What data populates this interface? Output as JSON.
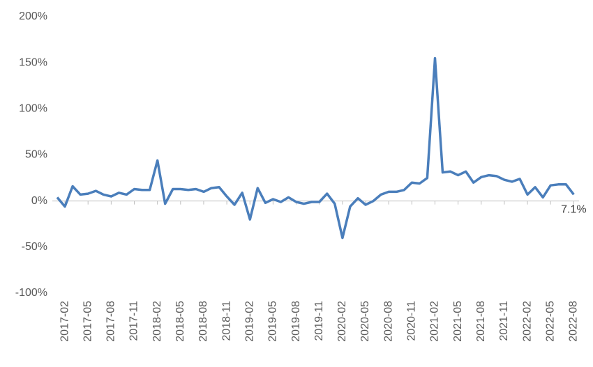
{
  "chart_data": {
    "type": "line",
    "categories": [
      null,
      "2017-02",
      null,
      null,
      "2017-05",
      null,
      null,
      "2017-08",
      null,
      null,
      "2017-11",
      null,
      null,
      "2018-02",
      null,
      null,
      "2018-05",
      null,
      null,
      "2018-08",
      null,
      null,
      "2018-11",
      null,
      null,
      "2019-02",
      null,
      null,
      "2019-05",
      null,
      null,
      "2019-08",
      null,
      null,
      "2019-11",
      null,
      null,
      "2020-02",
      null,
      null,
      "2020-05",
      null,
      null,
      "2020-08",
      null,
      null,
      "2020-11",
      null,
      null,
      "2021-02",
      null,
      null,
      "2021-05",
      null,
      null,
      "2021-08",
      null,
      null,
      "2021-11",
      null,
      null,
      "2022-02",
      null,
      null,
      "2022-05",
      null,
      null,
      "2022-08"
    ],
    "series": [
      {
        "color": "#4a7ebb",
        "values": [
          4,
          -6,
          16,
          7,
          8,
          11,
          7,
          5,
          9,
          7,
          13,
          12,
          12,
          44,
          -3,
          13,
          13,
          12,
          13,
          10,
          14,
          15,
          5,
          -4,
          9,
          -20,
          14,
          -2,
          2,
          -1,
          4,
          -1,
          -3,
          -1,
          -1,
          8,
          -3,
          -40,
          -6,
          3,
          -4,
          0,
          7,
          10,
          10,
          12,
          20,
          19,
          25,
          155,
          31,
          32,
          28,
          32,
          20,
          26,
          28,
          27,
          23,
          21,
          24,
          7,
          15,
          4,
          17,
          18,
          18,
          7.1
        ],
        "value_labels": [
          null,
          null,
          null,
          null,
          null,
          null,
          null,
          null,
          null,
          null,
          null,
          null,
          null,
          null,
          null,
          null,
          null,
          null,
          null,
          null,
          null,
          null,
          null,
          null,
          null,
          null,
          null,
          null,
          null,
          null,
          null,
          null,
          null,
          null,
          null,
          null,
          null,
          null,
          null,
          null,
          null,
          null,
          null,
          null,
          null,
          null,
          null,
          null,
          null,
          null,
          null,
          null,
          null,
          null,
          null,
          null,
          null,
          null,
          null,
          null,
          null,
          null,
          null,
          null,
          null,
          null,
          null,
          "7.1%"
        ]
      }
    ],
    "ylim": [
      -100,
      200
    ],
    "yticks": [
      {
        "value": -100,
        "label": "-100%"
      },
      {
        "value": -50,
        "label": "-50%"
      },
      {
        "value": 0,
        "label": "0%"
      },
      {
        "value": 50,
        "label": "50%"
      },
      {
        "value": 100,
        "label": "100%"
      },
      {
        "value": 150,
        "label": "150%"
      },
      {
        "value": 200,
        "label": "200%"
      }
    ],
    "grid": false
  }
}
